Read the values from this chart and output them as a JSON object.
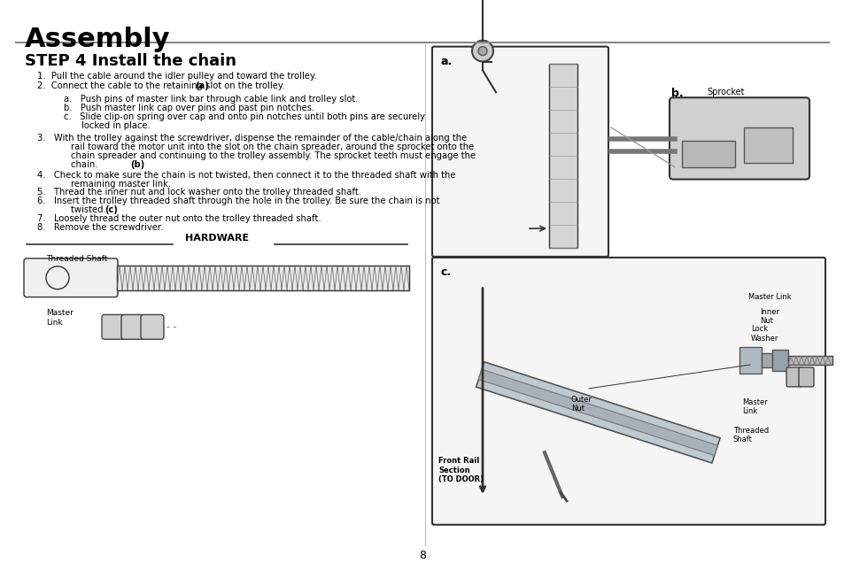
{
  "title": "Assembly",
  "step_title": "STEP 4 Install the chain",
  "bg_color": "#ffffff",
  "text_color": "#000000",
  "page_number": "8",
  "hardware_label": "HARDWARE",
  "threaded_shaft_label": "Threaded Shaft",
  "master_link_label": "Master\nLink",
  "diagram_a_label": "a.",
  "diagram_b_label": "b.",
  "diagram_b_sub_label": "Sprocket",
  "diagram_c_label": "c.",
  "diagram_c_labels": {
    "front_rail": "Front Rail\nSection\n(TO DOOR)",
    "outer_nut": "Outer\nNut",
    "master_link_top": "Master Link",
    "inner": "Inner\nNut",
    "lock_washer": "Lock\nWasher",
    "master_link_right": "Master\nLink",
    "threaded_shaft": "Threaded\nShaft"
  },
  "divider_color": "#555555",
  "hardware_line_color": "#333333"
}
